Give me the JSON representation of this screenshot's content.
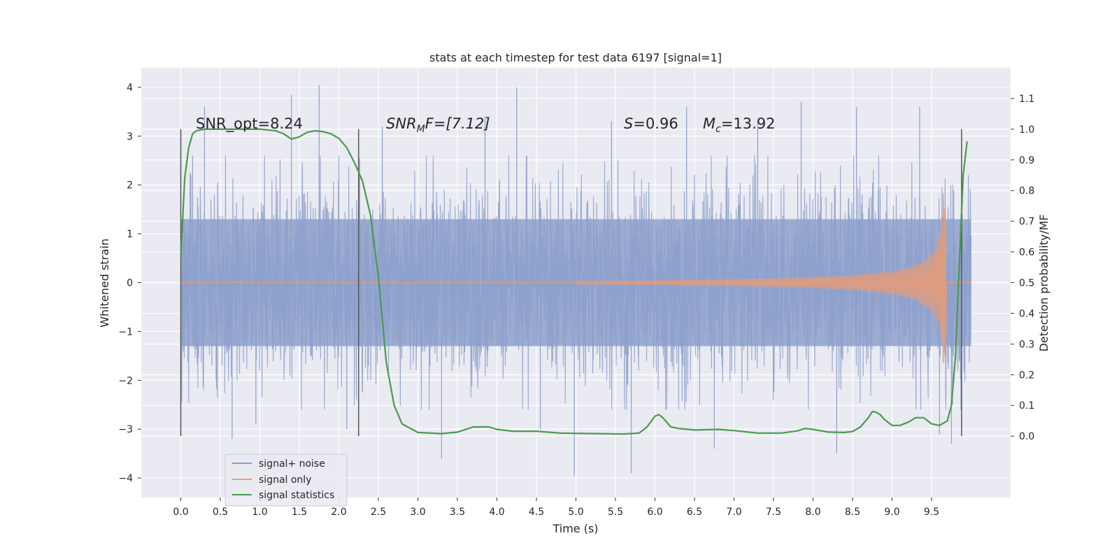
{
  "chart_data": {
    "type": "line",
    "title": "stats at each timestep for test data 6197 [signal=1]",
    "xlabel": "Time (s)",
    "ylabel": "Whitened strain",
    "ylabel_right": "Detection probability/MF",
    "xlim": [
      -0.5,
      10.5
    ],
    "ylim": [
      -4.4,
      4.4
    ],
    "ylim_right": [
      -0.2,
      1.2
    ],
    "x_ticks": [
      "0.0",
      "0.5",
      "1.0",
      "1.5",
      "2.0",
      "2.5",
      "3.0",
      "3.5",
      "4.0",
      "4.5",
      "5.0",
      "5.5",
      "6.0",
      "6.5",
      "7.0",
      "7.5",
      "8.0",
      "8.5",
      "9.0",
      "9.5"
    ],
    "y_ticks": [
      "−4",
      "−3",
      "−2",
      "−1",
      "0",
      "1",
      "2",
      "3",
      "4"
    ],
    "y_ticks_right": [
      "0.0",
      "0.1",
      "0.2",
      "0.3",
      "0.4",
      "0.5",
      "0.6",
      "0.7",
      "0.8",
      "0.9",
      "1.0",
      "1.1"
    ],
    "grid": true,
    "legend_position": "lower-left",
    "annotations": {
      "snr_opt": "SNR_opt=8.24",
      "snr_mf_base": "SNR",
      "snr_mf_sub": "M",
      "snr_mf_rest": "F=[7.12]",
      "s_sym": "S",
      "s_rest": "=0.96",
      "mc_sym": "M",
      "mc_sub": "c",
      "mc_rest": "=13.92"
    },
    "vertical_markers": [
      0.0,
      2.25,
      9.88
    ],
    "series": [
      {
        "name": "signal+ noise",
        "color": "#8da0cb",
        "axis": "left",
        "x_range": [
          0.0,
          10.0
        ],
        "envelope_std": 1.0,
        "spikes": [
          [
            0.15,
            2.6
          ],
          [
            0.3,
            3.6
          ],
          [
            0.65,
            -3.2
          ],
          [
            0.95,
            -2.9
          ],
          [
            1.4,
            3.85
          ],
          [
            1.75,
            4.05
          ],
          [
            2.1,
            -3.0
          ],
          [
            2.55,
            3.2
          ],
          [
            3.3,
            -3.6
          ],
          [
            3.85,
            3.4
          ],
          [
            4.25,
            4.0
          ],
          [
            4.55,
            -3.0
          ],
          [
            4.98,
            -3.95
          ],
          [
            5.45,
            3.3
          ],
          [
            5.7,
            -3.9
          ],
          [
            6.4,
            3.6
          ],
          [
            6.75,
            -3.4
          ],
          [
            7.3,
            3.3
          ],
          [
            7.85,
            3.7
          ],
          [
            8.3,
            -3.5
          ],
          [
            8.55,
            3.6
          ],
          [
            9.35,
            3.6
          ],
          [
            9.6,
            -3.1
          ],
          [
            9.75,
            -3.3
          ]
        ]
      },
      {
        "name": "signal only",
        "color": "#e49b7a",
        "axis": "left",
        "chirp_end": 9.68,
        "peak_amp": 1.7
      },
      {
        "name": "signal statistics",
        "color": "#4a9a4e",
        "axis": "right",
        "x": [
          0.0,
          0.05,
          0.1,
          0.15,
          0.2,
          0.3,
          0.5,
          0.8,
          1.0,
          1.2,
          1.3,
          1.4,
          1.5,
          1.6,
          1.7,
          1.8,
          1.9,
          2.0,
          2.1,
          2.2,
          2.3,
          2.4,
          2.5,
          2.55,
          2.6,
          2.7,
          2.8,
          3.0,
          3.3,
          3.5,
          3.7,
          3.9,
          4.0,
          4.2,
          4.5,
          4.8,
          5.0,
          5.3,
          5.6,
          5.8,
          5.9,
          6.0,
          6.05,
          6.1,
          6.2,
          6.3,
          6.5,
          6.8,
          7.0,
          7.3,
          7.6,
          7.8,
          7.9,
          8.0,
          8.2,
          8.4,
          8.5,
          8.6,
          8.7,
          8.75,
          8.8,
          8.85,
          8.9,
          9.0,
          9.1,
          9.2,
          9.3,
          9.4,
          9.5,
          9.6,
          9.7,
          9.75,
          9.8,
          9.85,
          9.9,
          9.95
        ],
        "y": [
          0.58,
          0.84,
          0.94,
          0.985,
          0.995,
          1.0,
          1.0,
          1.0,
          1.0,
          0.995,
          0.985,
          0.968,
          0.975,
          0.99,
          0.995,
          0.992,
          0.985,
          0.97,
          0.94,
          0.89,
          0.83,
          0.72,
          0.52,
          0.38,
          0.24,
          0.1,
          0.04,
          0.012,
          0.008,
          0.013,
          0.03,
          0.03,
          0.022,
          0.016,
          0.016,
          0.01,
          0.009,
          0.008,
          0.007,
          0.01,
          0.03,
          0.065,
          0.07,
          0.06,
          0.03,
          0.025,
          0.02,
          0.022,
          0.018,
          0.01,
          0.01,
          0.017,
          0.025,
          0.022,
          0.013,
          0.012,
          0.015,
          0.03,
          0.06,
          0.08,
          0.078,
          0.07,
          0.055,
          0.035,
          0.035,
          0.045,
          0.06,
          0.06,
          0.04,
          0.035,
          0.05,
          0.1,
          0.25,
          0.55,
          0.85,
          0.96
        ]
      }
    ]
  }
}
